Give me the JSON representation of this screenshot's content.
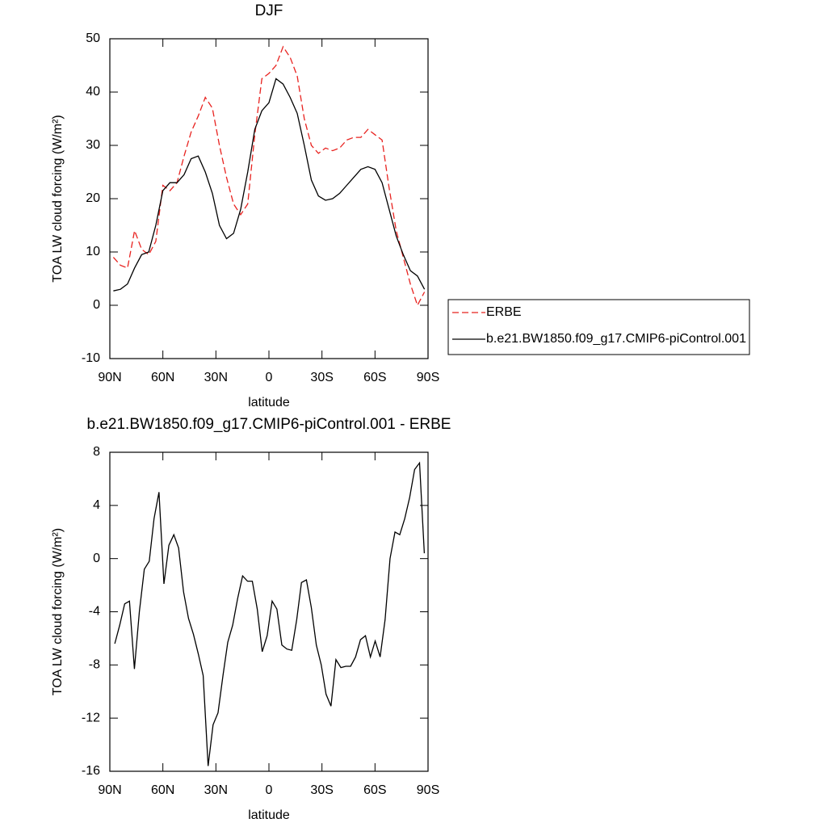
{
  "chart_data": [
    {
      "type": "line",
      "title": "DJF",
      "xlabel": "latitude",
      "ylabel": "TOA LW cloud forcing (W/m²)",
      "xlim": [
        90,
        -90
      ],
      "xticks": [
        {
          "value": 90,
          "label": "90N"
        },
        {
          "value": 60,
          "label": "60N"
        },
        {
          "value": 30,
          "label": "30N"
        },
        0,
        {
          "value": -30,
          "label": "30S"
        },
        {
          "value": -60,
          "label": "60S"
        },
        {
          "value": -90,
          "label": "90S"
        }
      ],
      "ylim": [
        -10,
        50
      ],
      "yticks": [
        -10,
        0,
        10,
        20,
        30,
        40,
        50
      ],
      "legend": "right",
      "x": [
        88,
        84,
        80,
        76,
        72,
        68,
        64,
        60,
        56,
        52,
        48,
        44,
        40,
        36,
        32,
        28,
        24,
        20,
        16,
        12,
        8,
        4,
        0,
        -4,
        -8,
        -12,
        -16,
        -20,
        -24,
        -28,
        -32,
        -36,
        -40,
        -44,
        -48,
        -52,
        -56,
        -60,
        -64,
        -68,
        -72,
        -76,
        -80,
        -84,
        -88
      ],
      "series": [
        {
          "name": "ERBE",
          "color": "#e8221f",
          "dash": true,
          "values": [
            9,
            7.5,
            7,
            14,
            10.5,
            9.5,
            12,
            22.5,
            21.5,
            23,
            28,
            32.5,
            35.5,
            39,
            37,
            30,
            24,
            19,
            17,
            19,
            32,
            42.5,
            43.5,
            45,
            48.5,
            46.5,
            43,
            35,
            30,
            28.5,
            29.5,
            29,
            29.5,
            31,
            31.5,
            31.5,
            33,
            32,
            31,
            22,
            14,
            9,
            4,
            0,
            2.5
          ]
        },
        {
          "name": "b.e21.BW1850.f09_g17.CMIP6-piControl.001",
          "color": "#000000",
          "dash": false,
          "values": [
            2.7,
            3,
            4,
            7,
            9.5,
            10,
            15,
            21.5,
            23,
            23,
            24.5,
            27.5,
            28,
            25,
            21,
            15,
            12.5,
            13.5,
            18,
            25,
            33,
            36.5,
            38,
            42.5,
            41.5,
            39,
            36,
            30,
            23.5,
            20.5,
            19.7,
            20,
            21,
            22.5,
            24,
            25.5,
            26,
            25.5,
            23,
            18,
            13,
            9.5,
            6.5,
            5.5,
            3
          ]
        }
      ]
    },
    {
      "type": "line",
      "title": "b.e21.BW1850.f09_g17.CMIP6-piControl.001 - ERBE",
      "xlabel": "latitude",
      "ylabel": "TOA LW cloud forcing (W/m²)",
      "xlim": [
        90,
        -90
      ],
      "xticks": [
        {
          "value": 90,
          "label": "90N"
        },
        {
          "value": 60,
          "label": "60N"
        },
        {
          "value": 30,
          "label": "30N"
        },
        0,
        {
          "value": -30,
          "label": "30S"
        },
        {
          "value": -60,
          "label": "60S"
        },
        {
          "value": -90,
          "label": "90S"
        }
      ],
      "ylim": [
        -16,
        8
      ],
      "yticks": [
        -16,
        -12,
        -8,
        -4,
        0,
        4,
        8
      ],
      "x": [
        87.2,
        84.4,
        81.6,
        78.9,
        76.1,
        73.3,
        70.5,
        67.7,
        65.0,
        62.2,
        59.4,
        56.6,
        53.8,
        51.1,
        48.3,
        45.5,
        42.7,
        39.9,
        37.2,
        34.4,
        31.6,
        28.8,
        26.0,
        23.3,
        20.5,
        17.7,
        14.9,
        12.1,
        9.4,
        6.6,
        3.8,
        1.0,
        -1.8,
        -4.5,
        -7.3,
        -10.1,
        -12.9,
        -15.7,
        -18.4,
        -21.2,
        -24.0,
        -26.8,
        -29.6,
        -32.3,
        -35.1,
        -37.9,
        -40.7,
        -43.5,
        -46.2,
        -49.0,
        -51.8,
        -54.6,
        -57.4,
        -60.1,
        -62.9,
        -65.7,
        -68.5,
        -71.3,
        -74.0,
        -76.8,
        -79.6,
        -82.4,
        -85.2,
        -87.9
      ],
      "series": [
        {
          "color": "#000000",
          "dash": false,
          "values": [
            -6.4,
            -5,
            -3.4,
            -3.2,
            -8.3,
            -4,
            -0.8,
            -0.2,
            3,
            5,
            -1.9,
            1,
            1.8,
            0.8,
            -2.5,
            -4.5,
            -5.7,
            -7.2,
            -8.8,
            -15.6,
            -12.5,
            -11.6,
            -8.8,
            -6.3,
            -5,
            -3,
            -1.3,
            -1.7,
            -1.7,
            -3.8,
            -7,
            -5.8,
            -3.2,
            -3.8,
            -6.5,
            -6.8,
            -6.9,
            -4.6,
            -1.8,
            -1.6,
            -3.7,
            -6.5,
            -8,
            -10.2,
            -11.1,
            -7.6,
            -8.2,
            -8.1,
            -8.1,
            -7.4,
            -6.1,
            -5.8,
            -7.4,
            -6.2,
            -7.4,
            -4.6,
            0,
            2,
            1.8,
            3,
            4.6,
            6.7,
            7.2,
            0.4
          ]
        }
      ]
    }
  ]
}
